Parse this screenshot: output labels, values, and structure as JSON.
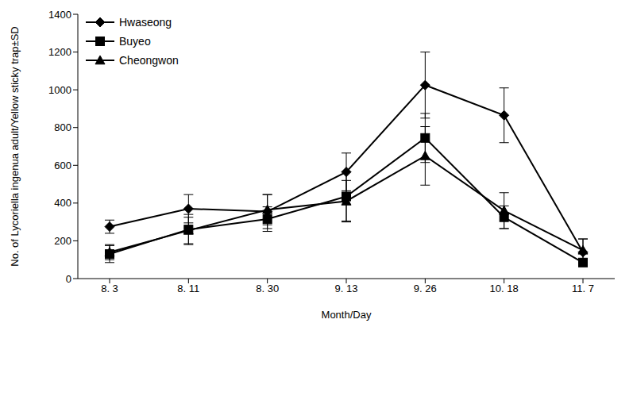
{
  "chart_data": {
    "type": "line",
    "categories": [
      "8. 3",
      "8. 11",
      "8. 30",
      "9. 13",
      "9. 26",
      "10. 18",
      "11. 7"
    ],
    "x_label": "Month/Day",
    "y_label": "No. of Lycoriella ingenua adult/Yellow sticky trap±SD",
    "ylim": [
      0,
      1400
    ],
    "yticks": [
      0,
      200,
      400,
      600,
      800,
      1000,
      1200,
      1400
    ],
    "grid": false,
    "legend": "top-left",
    "series": [
      {
        "name": "Hwaseong",
        "color": "#000000",
        "marker": "diamond",
        "values": [
          275,
          370,
          355,
          565,
          1025,
          865,
          140
        ],
        "sd": [
          35,
          75,
          90,
          100,
          175,
          145,
          70
        ]
      },
      {
        "name": "Buyeo",
        "color": "#000000",
        "marker": "square",
        "values": [
          130,
          260,
          315,
          435,
          745,
          325,
          85
        ],
        "sd": [
          45,
          80,
          65,
          130,
          130,
          60,
          20
        ]
      },
      {
        "name": "Cheongwon",
        "color": "#000000",
        "marker": "triangle",
        "values": [
          140,
          255,
          365,
          410,
          650,
          360,
          150
        ],
        "sd": [
          40,
          70,
          80,
          110,
          155,
          95,
          60
        ]
      }
    ]
  }
}
